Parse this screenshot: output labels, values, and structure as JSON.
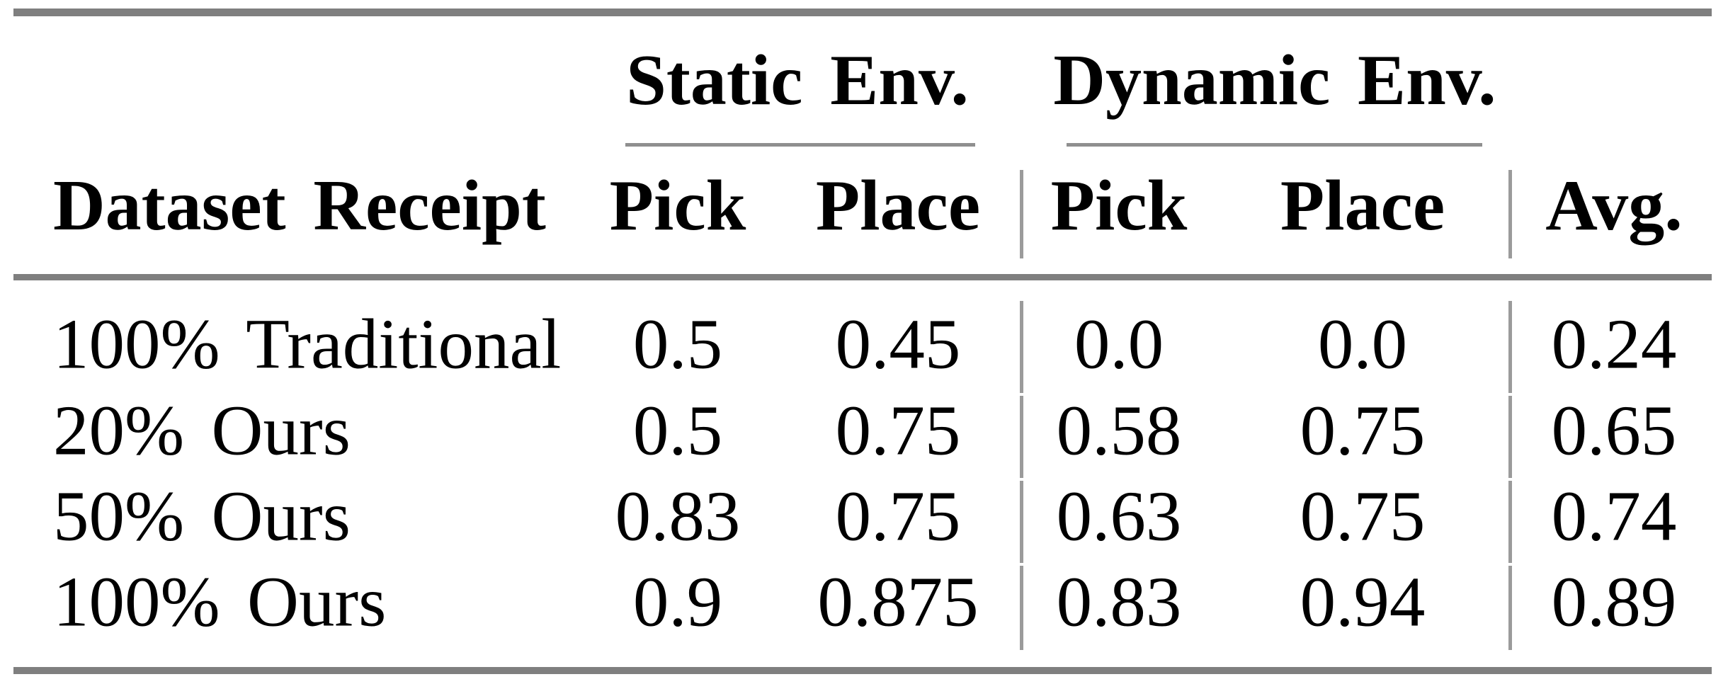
{
  "table": {
    "row_header": "Dataset Receipt",
    "groups": [
      {
        "label": "Static Env.",
        "subcolumns": [
          "Pick",
          "Place"
        ]
      },
      {
        "label": "Dynamic Env.",
        "subcolumns": [
          "Pick",
          "Place"
        ]
      }
    ],
    "avg_header": "Avg.",
    "rows": [
      {
        "label": "100% Traditional",
        "values": {
          "static_pick": "0.5",
          "static_place": "0.45",
          "dynamic_pick": "0.0",
          "dynamic_place": "0.0",
          "avg": "0.24"
        }
      },
      {
        "label": "20% Ours",
        "values": {
          "static_pick": "0.5",
          "static_place": "0.75",
          "dynamic_pick": "0.58",
          "dynamic_place": "0.75",
          "avg": "0.65"
        }
      },
      {
        "label": "50% Ours",
        "values": {
          "static_pick": "0.83",
          "static_place": "0.75",
          "dynamic_pick": "0.63",
          "dynamic_place": "0.75",
          "avg": "0.74"
        }
      },
      {
        "label": "100% Ours",
        "values": {
          "static_pick": "0.9",
          "static_place": "0.875",
          "dynamic_pick": "0.83",
          "dynamic_place": "0.94",
          "avg": "0.89"
        }
      }
    ],
    "colors": {
      "thick_rule": "#7f7f7f",
      "thin_rule": "#8f8f8f",
      "vertical_rule": "#9b9b9b",
      "text": "#000000",
      "background": "#ffffff"
    }
  }
}
